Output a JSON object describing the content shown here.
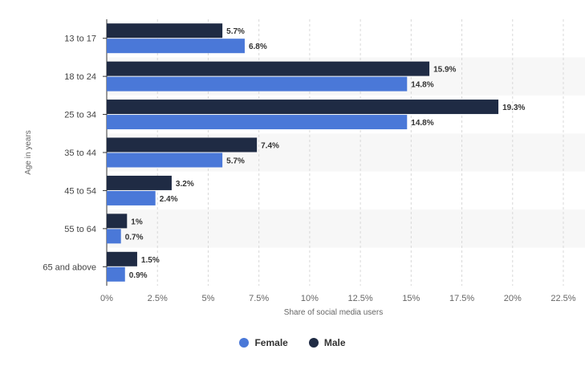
{
  "chart_data": {
    "type": "bar",
    "orientation": "horizontal",
    "categories": [
      "13 to 17",
      "18 to 24",
      "25 to 34",
      "35 to 44",
      "45 to 54",
      "55 to 64",
      "65 and above"
    ],
    "series": [
      {
        "name": "Male",
        "color": "#1f2b44",
        "values": [
          5.7,
          15.9,
          19.3,
          7.4,
          3.2,
          1.0,
          1.5
        ],
        "labels": [
          "5.7%",
          "15.9%",
          "19.3%",
          "7.4%",
          "3.2%",
          "1%",
          "1.5%"
        ]
      },
      {
        "name": "Female",
        "color": "#4a78d8",
        "values": [
          6.8,
          14.8,
          14.8,
          5.7,
          2.4,
          0.7,
          0.9
        ],
        "labels": [
          "6.8%",
          "14.8%",
          "14.8%",
          "5.7%",
          "2.4%",
          "0.7%",
          "0.9%"
        ]
      }
    ],
    "xlabel": "Share of social media users",
    "ylabel": "Age in years",
    "xlim": [
      0,
      22.5
    ],
    "xticks": [
      "0%",
      "2.5%",
      "5%",
      "7.5%",
      "10%",
      "12.5%",
      "15%",
      "17.5%",
      "20%",
      "22.5%"
    ],
    "grid": true,
    "legend_position": "bottom-center"
  },
  "legend": {
    "female": "Female",
    "male": "Male"
  }
}
